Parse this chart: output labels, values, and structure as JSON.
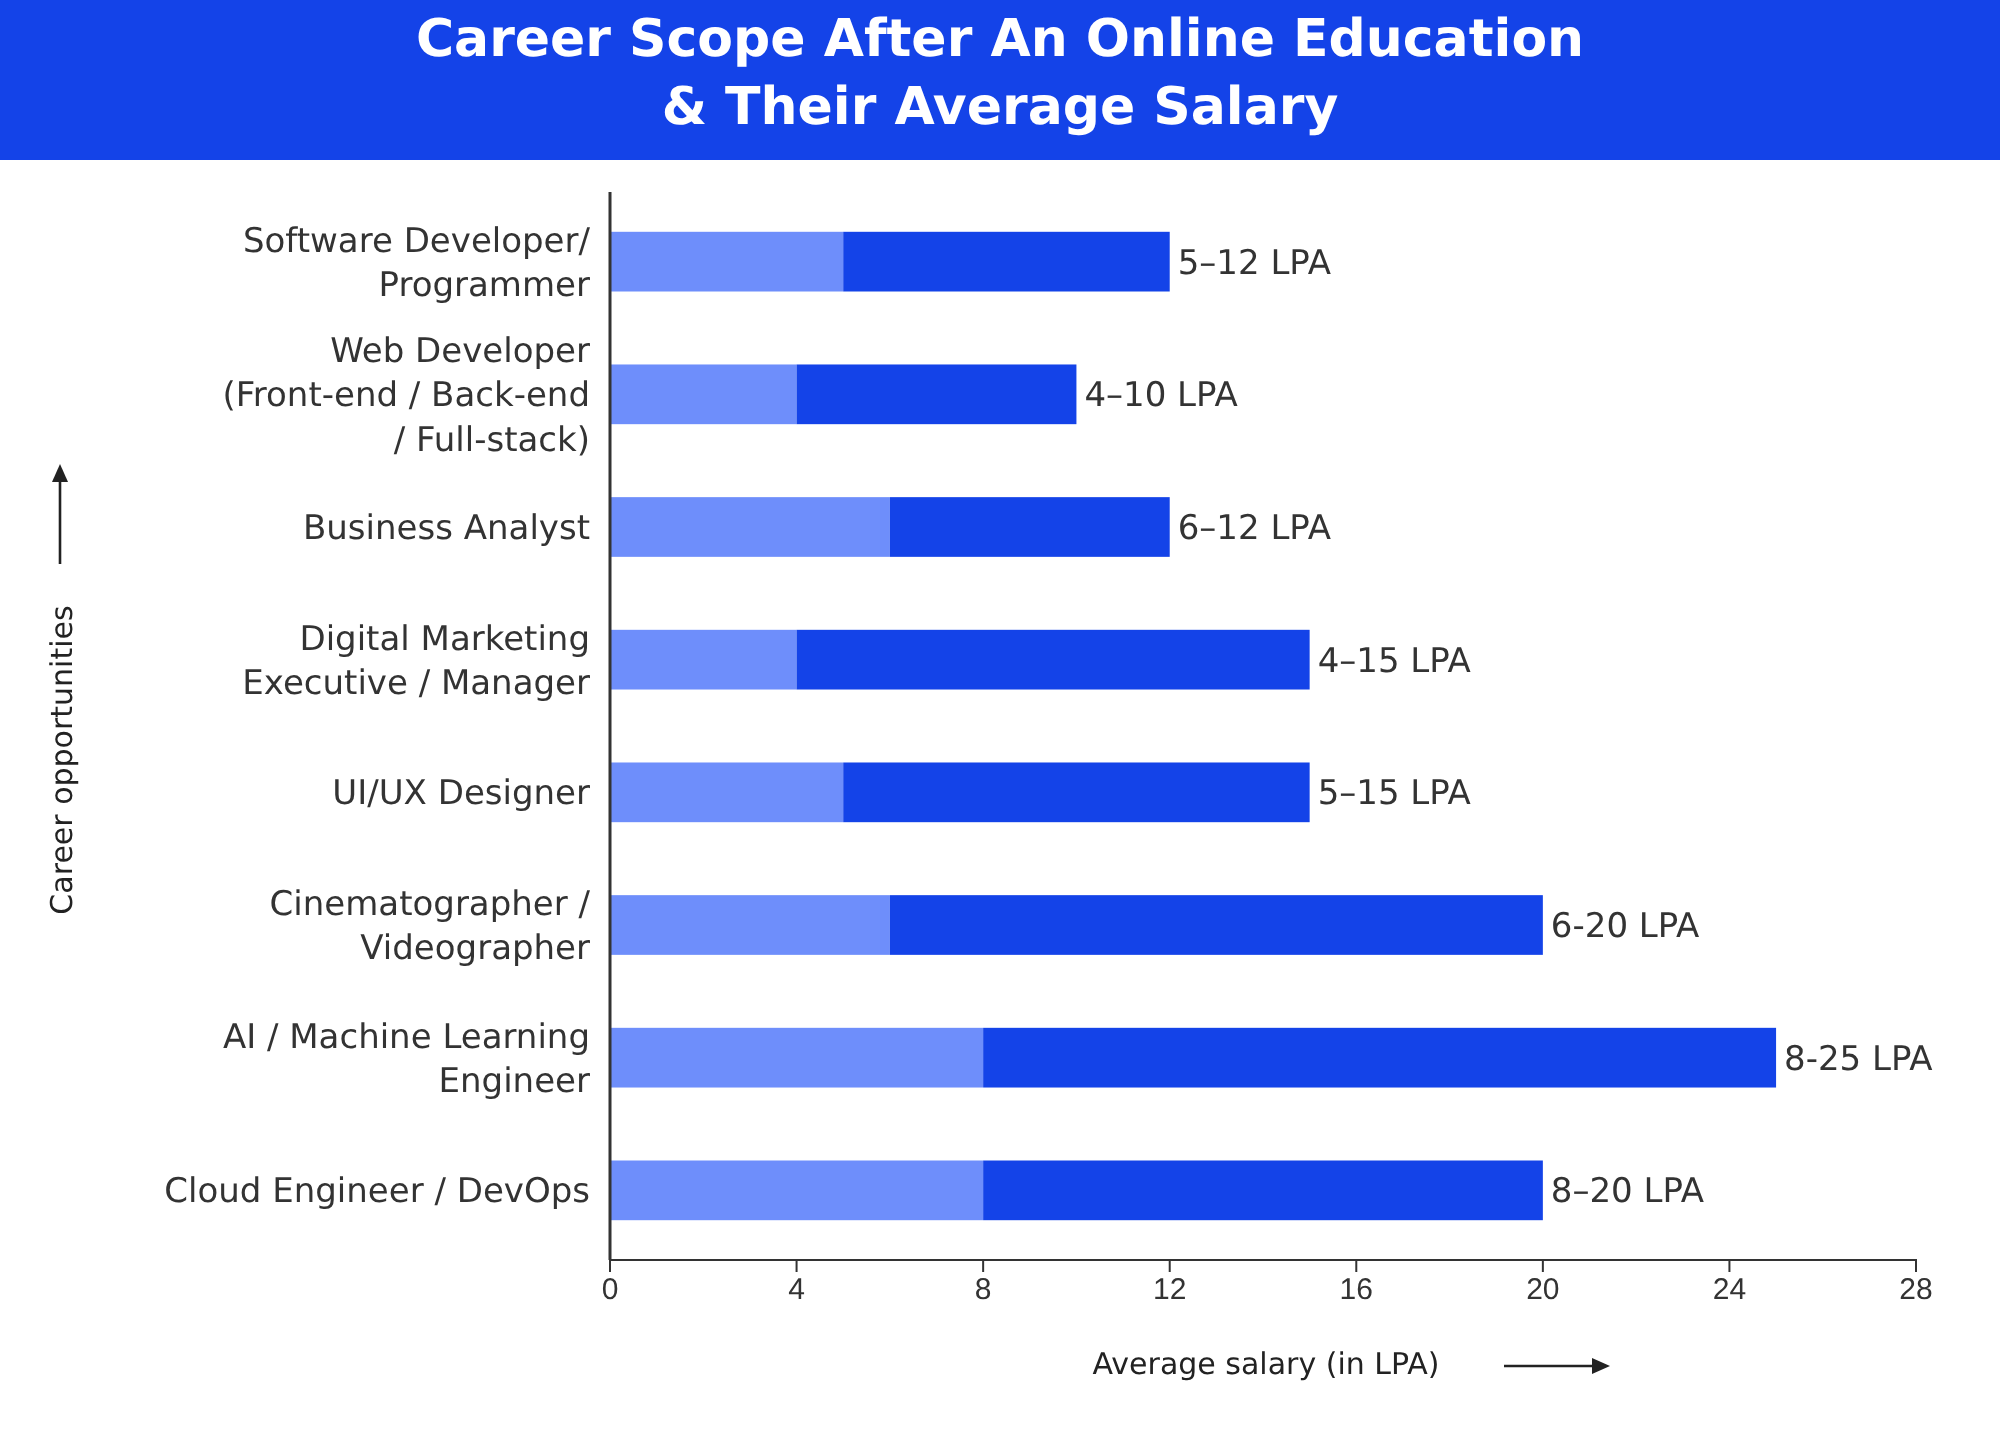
{
  "chart_data": {
    "type": "bar",
    "orientation": "horizontal",
    "stacked": true,
    "title": "Career Scope After An Online Education\n& Their Average Salary",
    "xlabel": "Average salary (in LPA)",
    "ylabel": "Career opportunities",
    "categories": [
      "Software Developer/\nProgrammer",
      "Web Developer\n(Front-end / Back-end\n/ Full-stack)",
      "Business Analyst",
      "Digital Marketing\nExecutive / Manager",
      "UI/UX Designer",
      "Cinematographer /\nVideographer",
      "AI / Machine Learning\nEngineer",
      "Cloud Engineer / DevOps"
    ],
    "series": [
      {
        "color": "#6e8efb",
        "values": [
          5,
          4,
          6,
          4,
          5,
          6,
          8,
          8
        ]
      },
      {
        "color": "#1443e8",
        "values": [
          7,
          6,
          6,
          11,
          10,
          14,
          17,
          12
        ],
        "value_labels": [
          "5–12 LPA",
          "4–10 LPA",
          "6–12 LPA",
          "4–15 LPA",
          "5–15 LPA",
          "6-20 LPA",
          "8-25 LPA",
          "8–20 LPA"
        ]
      }
    ],
    "xlim": [
      0,
      28
    ],
    "xticks": [
      0,
      4,
      8,
      12,
      16,
      20,
      24,
      28
    ],
    "grid": false
  }
}
